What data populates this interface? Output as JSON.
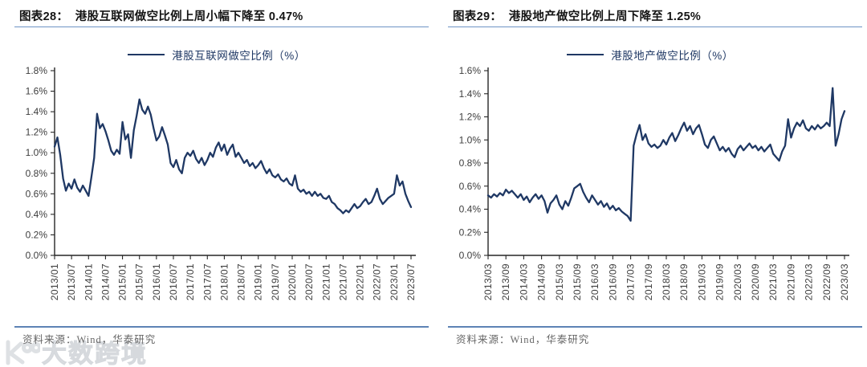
{
  "watermark": {
    "text": "大数跨境"
  },
  "chart_data": [
    {
      "type": "line",
      "title": "图表28：  港股互联网做空比例上周小幅下降至 0.47%",
      "source": "资料来源：Wind，华泰研究",
      "ylim": [
        0,
        1.8
      ],
      "ystep": 0.2,
      "points_per_tick": 6,
      "line_color": "#1f3864",
      "legend_position": "top-center",
      "grid": false,
      "x_tick_labels": [
        "2013/01",
        "2013/07",
        "2014/01",
        "2014/07",
        "2015/01",
        "2015/07",
        "2016/01",
        "2016/07",
        "2017/01",
        "2017/07",
        "2018/01",
        "2018/07",
        "2019/01",
        "2019/07",
        "2020/01",
        "2020/07",
        "2021/01",
        "2021/07",
        "2022/01",
        "2022/07",
        "2023/01",
        "2023/07"
      ],
      "series": [
        {
          "name": "港股互联网做空比例（%）",
          "values": [
            1.06,
            1.15,
            0.98,
            0.75,
            0.63,
            0.7,
            0.65,
            0.74,
            0.66,
            0.62,
            0.68,
            0.63,
            0.58,
            0.76,
            0.95,
            1.38,
            1.24,
            1.28,
            1.21,
            1.12,
            1.02,
            0.98,
            1.03,
            0.99,
            1.3,
            1.13,
            1.18,
            0.95,
            1.22,
            1.36,
            1.52,
            1.42,
            1.38,
            1.45,
            1.37,
            1.24,
            1.12,
            1.16,
            1.25,
            1.17,
            1.08,
            0.9,
            0.86,
            0.93,
            0.84,
            0.8,
            0.95,
            1.0,
            0.97,
            1.02,
            0.94,
            0.9,
            0.95,
            0.88,
            0.93,
            1.0,
            0.96,
            1.05,
            1.1,
            1.02,
            1.08,
            0.98,
            1.04,
            1.08,
            0.96,
            1.0,
            0.95,
            0.9,
            0.93,
            0.87,
            0.9,
            0.85,
            0.88,
            0.92,
            0.85,
            0.8,
            0.84,
            0.78,
            0.76,
            0.79,
            0.74,
            0.72,
            0.75,
            0.7,
            0.68,
            0.78,
            0.65,
            0.62,
            0.64,
            0.6,
            0.62,
            0.58,
            0.62,
            0.58,
            0.6,
            0.56,
            0.55,
            0.58,
            0.52,
            0.5,
            0.46,
            0.44,
            0.41,
            0.44,
            0.42,
            0.46,
            0.5,
            0.46,
            0.48,
            0.52,
            0.55,
            0.5,
            0.52,
            0.58,
            0.65,
            0.55,
            0.5,
            0.53,
            0.56,
            0.58,
            0.6,
            0.78,
            0.68,
            0.72,
            0.6,
            0.53,
            0.47
          ]
        }
      ]
    },
    {
      "type": "line",
      "title": "图表29：  港股地产做空比例上周下降至 1.25%",
      "source": "资料来源：Wind，华泰研究",
      "ylim": [
        0,
        1.6
      ],
      "ystep": 0.2,
      "points_per_tick": 6,
      "line_color": "#1f3864",
      "legend_position": "top-center",
      "grid": false,
      "x_tick_labels": [
        "2013/03",
        "2013/09",
        "2014/03",
        "2014/09",
        "2015/03",
        "2015/09",
        "2016/03",
        "2016/09",
        "2017/03",
        "2017/09",
        "2018/03",
        "2018/09",
        "2019/03",
        "2019/09",
        "2020/03",
        "2020/09",
        "2021/03",
        "2021/09",
        "2022/03",
        "2022/09",
        "2023/03"
      ],
      "series": [
        {
          "name": "港股地产做空比例（%）",
          "values": [
            0.52,
            0.5,
            0.53,
            0.51,
            0.54,
            0.52,
            0.57,
            0.54,
            0.56,
            0.53,
            0.5,
            0.53,
            0.48,
            0.51,
            0.46,
            0.5,
            0.53,
            0.49,
            0.52,
            0.47,
            0.37,
            0.45,
            0.48,
            0.52,
            0.44,
            0.4,
            0.47,
            0.43,
            0.5,
            0.58,
            0.6,
            0.62,
            0.55,
            0.5,
            0.46,
            0.52,
            0.48,
            0.44,
            0.47,
            0.42,
            0.45,
            0.4,
            0.43,
            0.39,
            0.41,
            0.38,
            0.36,
            0.34,
            0.3,
            0.95,
            1.05,
            1.13,
            1.0,
            1.05,
            0.97,
            0.94,
            0.96,
            0.93,
            0.95,
            1.0,
            0.96,
            1.02,
            1.06,
            0.99,
            1.04,
            1.1,
            1.15,
            1.08,
            1.12,
            1.05,
            1.1,
            1.13,
            1.05,
            0.96,
            0.93,
            1.0,
            1.03,
            0.97,
            0.91,
            0.94,
            0.9,
            0.93,
            0.88,
            0.85,
            0.92,
            0.95,
            0.91,
            0.94,
            0.97,
            0.93,
            0.95,
            0.91,
            0.94,
            0.9,
            0.93,
            0.96,
            0.88,
            0.85,
            0.82,
            0.9,
            0.95,
            1.18,
            1.02,
            1.1,
            1.15,
            1.12,
            1.17,
            1.1,
            1.08,
            1.12,
            1.09,
            1.13,
            1.1,
            1.12,
            1.15,
            1.12,
            1.45,
            0.95,
            1.05,
            1.18,
            1.25
          ]
        }
      ]
    }
  ]
}
